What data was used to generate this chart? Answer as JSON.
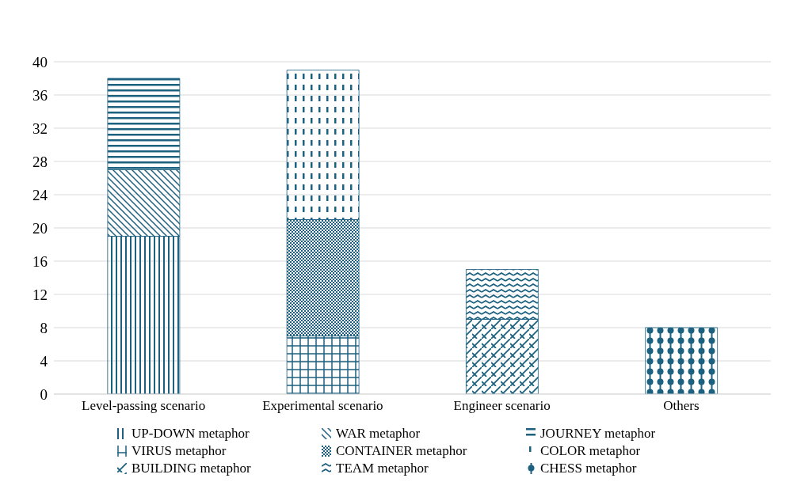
{
  "chart_data": {
    "type": "bar",
    "stacked": true,
    "categories": [
      "Level-passing scenario",
      "Experimental scenario",
      "Engineer scenario",
      "Others"
    ],
    "series": [
      {
        "name": "UP-DOWN metaphor",
        "color": "#1d6180",
        "values": [
          19,
          null,
          null,
          null
        ]
      },
      {
        "name": "WAR metaphor",
        "color": "#1d6180",
        "values": [
          8,
          null,
          null,
          null
        ]
      },
      {
        "name": "JOURNEY metaphor",
        "color": "#1d6180",
        "values": [
          11,
          null,
          null,
          null
        ]
      },
      {
        "name": "VIRUS metaphor",
        "color": "#1d6180",
        "values": [
          null,
          7,
          null,
          null
        ]
      },
      {
        "name": "CONTAINER metaphor",
        "color": "#1d6180",
        "values": [
          null,
          14,
          null,
          null
        ]
      },
      {
        "name": "COLOR metaphor",
        "color": "#1d6180",
        "values": [
          null,
          18,
          null,
          null
        ]
      },
      {
        "name": "BUILDING metaphor",
        "color": "#1d6180",
        "values": [
          null,
          null,
          9,
          null
        ]
      },
      {
        "name": "TEAM metaphor",
        "color": "#1d6180",
        "values": [
          null,
          null,
          6,
          null
        ]
      },
      {
        "name": "CHESS metaphor",
        "color": "#1d6180",
        "values": [
          null,
          null,
          null,
          8
        ]
      }
    ],
    "ylim": [
      0,
      40
    ],
    "yticks": [
      0,
      4,
      8,
      12,
      16,
      20,
      24,
      28,
      32,
      36,
      40
    ],
    "grid": "y",
    "legend": "bottom"
  }
}
